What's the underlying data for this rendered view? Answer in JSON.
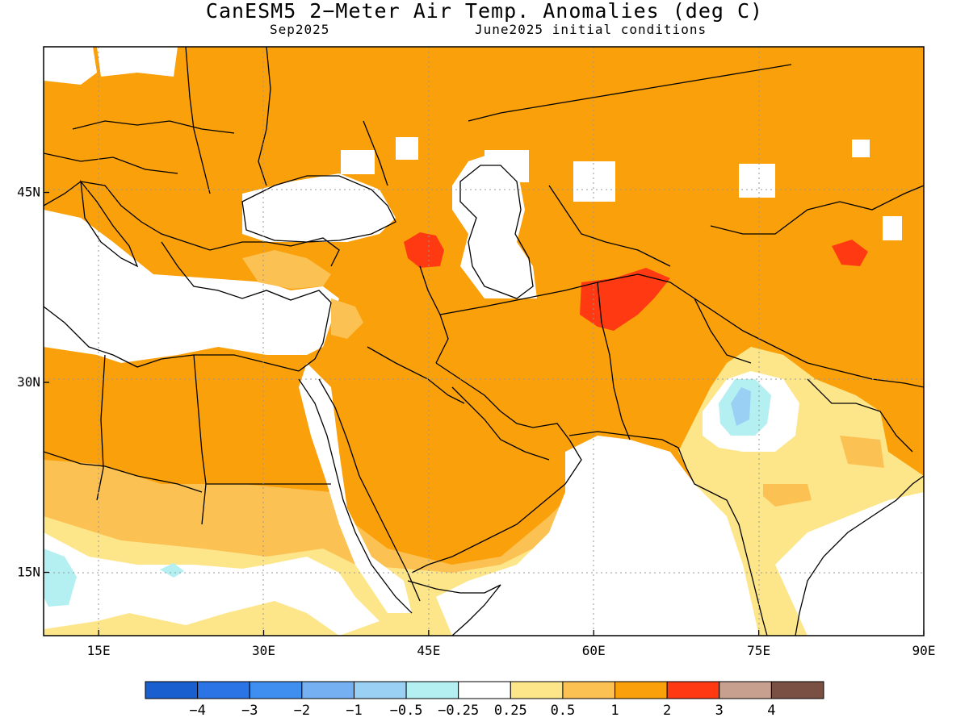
{
  "title": "CanESM5 2−Meter Air Temp. Anomalies (deg C)",
  "subtitle_left": "Sep2025",
  "subtitle_right": "June2025 initial conditions",
  "map": {
    "lon_range": [
      10,
      90
    ],
    "lat_range": [
      10,
      56.5
    ],
    "x_ticks": [
      {
        "lon": 15,
        "label": "15E"
      },
      {
        "lon": 30,
        "label": "30E"
      },
      {
        "lon": 45,
        "label": "45E"
      },
      {
        "lon": 60,
        "label": "60E"
      },
      {
        "lon": 75,
        "label": "75E"
      },
      {
        "lon": 90,
        "label": "90E"
      }
    ],
    "y_ticks": [
      {
        "lat": 15,
        "label": "15N"
      },
      {
        "lat": 30,
        "label": "30N"
      },
      {
        "lat": 45,
        "label": "45N"
      }
    ],
    "gridlines": "dotted"
  },
  "colorbar": {
    "colors": [
      "#1a5fcf",
      "#2b74e6",
      "#3f8ff0",
      "#74b0f2",
      "#9bd0f5",
      "#b4f0f2",
      "#ffffff",
      "#fde68a",
      "#fcc153",
      "#f9a00a",
      "#ff3a12",
      "#c7a090",
      "#7a5044"
    ],
    "labels": [
      "−4",
      "−3",
      "−2",
      "−1",
      "−0.5",
      "−0.25",
      "0.25",
      "0.5",
      "1",
      "2",
      "3",
      "4"
    ]
  }
}
